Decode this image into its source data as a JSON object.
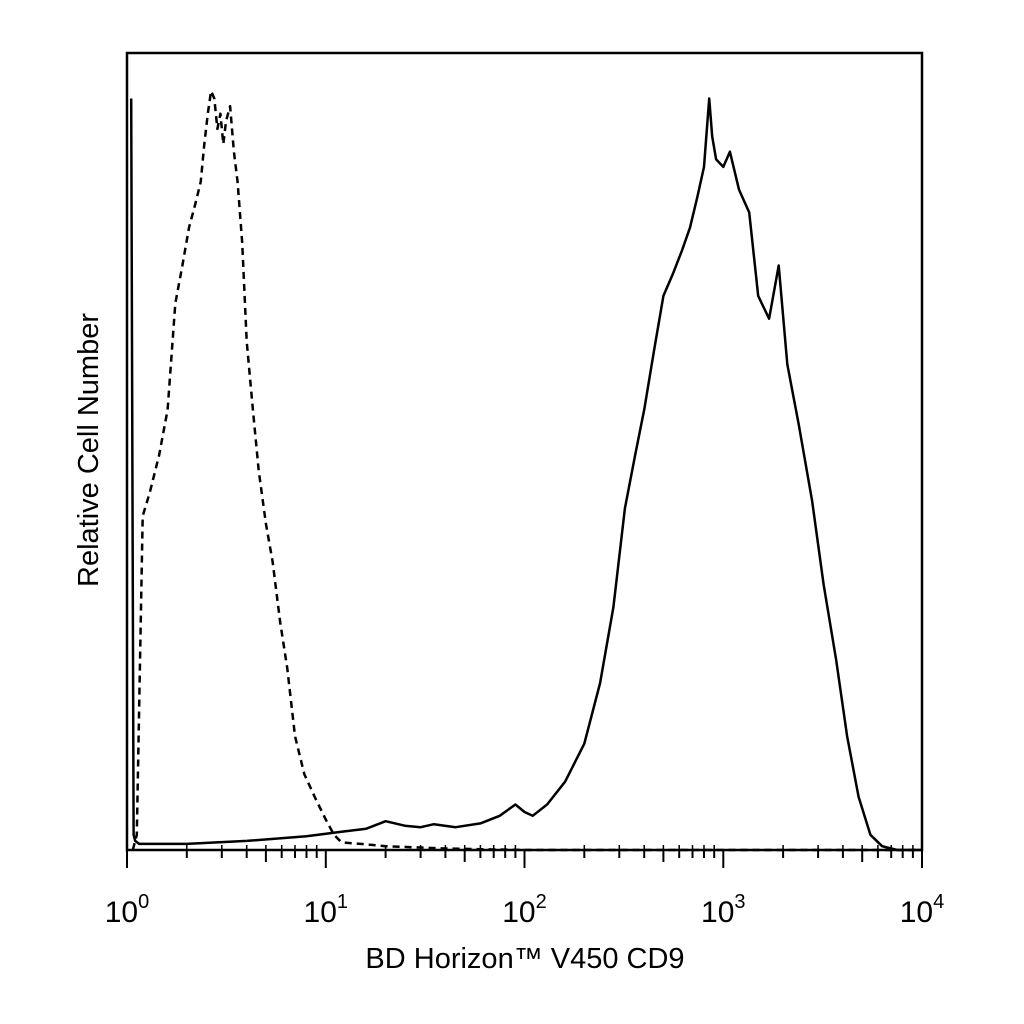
{
  "chart_data": {
    "type": "line",
    "xlabel": "BD Horizon™ V450 CD9",
    "ylabel": "Relative Cell Number",
    "x_scale": "log",
    "xlim": [
      1,
      10000
    ],
    "ylim": [
      0,
      1.05
    ],
    "x_ticks": [
      {
        "base": "10",
        "exp": "0",
        "value": 1
      },
      {
        "base": "10",
        "exp": "1",
        "value": 10
      },
      {
        "base": "10",
        "exp": "2",
        "value": 100
      },
      {
        "base": "10",
        "exp": "3",
        "value": 1000
      },
      {
        "base": "10",
        "exp": "4",
        "value": 10000
      }
    ],
    "grid": false,
    "legend": "none",
    "series": [
      {
        "line_style": "dashed",
        "color": "#000000",
        "x": [
          1.07,
          1.12,
          1.2,
          1.3,
          1.45,
          1.6,
          1.75,
          1.9,
          2.05,
          2.2,
          2.35,
          2.45,
          2.55,
          2.65,
          2.75,
          2.85,
          2.95,
          3.05,
          3.15,
          3.3,
          3.45,
          3.6,
          3.8,
          4.0,
          4.3,
          4.6,
          5.0,
          5.4,
          5.9,
          6.4,
          7.0,
          7.8,
          8.8,
          10.0,
          11.0,
          12.0,
          15.0,
          20.0,
          40.0,
          100.0,
          1000.0,
          10000.0
        ],
        "y": [
          0.0,
          0.02,
          0.44,
          0.47,
          0.52,
          0.58,
          0.72,
          0.77,
          0.82,
          0.85,
          0.88,
          0.93,
          0.97,
          1.0,
          0.99,
          0.95,
          0.97,
          0.93,
          0.96,
          0.98,
          0.92,
          0.88,
          0.8,
          0.67,
          0.58,
          0.5,
          0.43,
          0.38,
          0.3,
          0.24,
          0.15,
          0.1,
          0.07,
          0.04,
          0.02,
          0.01,
          0.008,
          0.005,
          0.002,
          0.0,
          0.0,
          0.0
        ]
      },
      {
        "line_style": "solid",
        "color": "#000000",
        "x": [
          1.05,
          1.08,
          1.1,
          1.15,
          1.3,
          2.0,
          4.0,
          8.0,
          12.0,
          16.0,
          20.0,
          25.0,
          30.0,
          35.0,
          45.0,
          60.0,
          75.0,
          90.0,
          100.0,
          110.0,
          130.0,
          160.0,
          200.0,
          240.0,
          280.0,
          320.0,
          360.0,
          400.0,
          450.0,
          500.0,
          560.0,
          620.0,
          680.0,
          740.0,
          800.0,
          850.0,
          880.0,
          920.0,
          1000.0,
          1080.0,
          1200.0,
          1350.0,
          1500.0,
          1700.0,
          1900.0,
          2100.0,
          2400.0,
          2800.0,
          3200.0,
          3700.0,
          4200.0,
          4800.0,
          5500.0,
          6300.0,
          7500.0,
          10000.0
        ],
        "y": [
          0.99,
          0.02,
          0.012,
          0.008,
          0.008,
          0.008,
          0.012,
          0.018,
          0.024,
          0.028,
          0.038,
          0.032,
          0.03,
          0.034,
          0.03,
          0.035,
          0.045,
          0.06,
          0.05,
          0.045,
          0.06,
          0.09,
          0.14,
          0.22,
          0.32,
          0.45,
          0.52,
          0.58,
          0.66,
          0.73,
          0.76,
          0.79,
          0.82,
          0.86,
          0.9,
          0.99,
          0.94,
          0.91,
          0.9,
          0.92,
          0.87,
          0.84,
          0.73,
          0.7,
          0.77,
          0.64,
          0.56,
          0.46,
          0.35,
          0.25,
          0.15,
          0.07,
          0.02,
          0.005,
          0.0,
          0.0
        ]
      }
    ]
  }
}
